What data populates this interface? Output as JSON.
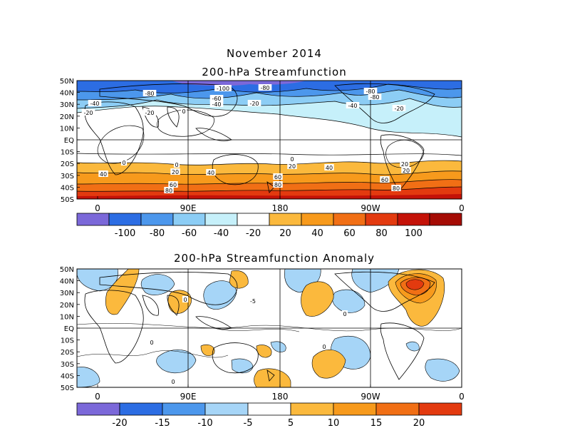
{
  "header": {
    "month": "November 2014"
  },
  "panels": [
    {
      "title": "200-hPa Streamfunction",
      "lat_labels": [
        "50N",
        "40N",
        "30N",
        "20N",
        "10N",
        "EQ",
        "10S",
        "20S",
        "30S",
        "40S",
        "50S"
      ],
      "lon_labels": [
        "0",
        "90E",
        "180",
        "90W",
        "0"
      ],
      "colorbar": {
        "labels": [
          "-100",
          "-80",
          "-60",
          "-40",
          "-20",
          "20",
          "40",
          "60",
          "80",
          "100"
        ],
        "colors": [
          "#7b68d9",
          "#2c6de3",
          "#4c97ec",
          "#8ccdf5",
          "#c6f0fa",
          "#ffffff",
          "#fbb93d",
          "#f79a1c",
          "#f16f15",
          "#e33a0f",
          "#c41208",
          "#a50c05"
        ]
      },
      "contour_labels": [
        "-100",
        "-80",
        "-80",
        "-80",
        "-80",
        "-60",
        "-40",
        "-40",
        "-40",
        "-20",
        "-20",
        "-20",
        "-20",
        "0",
        "0",
        "0",
        "0",
        "20",
        "20",
        "20",
        "20",
        "40",
        "40",
        "40",
        "60",
        "60",
        "60",
        "80",
        "80",
        "80"
      ]
    },
    {
      "title": "200-hPa Streamfunction Anomaly",
      "lat_labels": [
        "50N",
        "40N",
        "30N",
        "20N",
        "10N",
        "EQ",
        "10S",
        "20S",
        "30S",
        "40S",
        "50S"
      ],
      "lon_labels": [
        "0",
        "90E",
        "180",
        "90W",
        "0"
      ],
      "colorbar": {
        "labels": [
          "-20",
          "-15",
          "-10",
          "-5",
          "5",
          "10",
          "15",
          "20"
        ],
        "colors": [
          "#7b68d9",
          "#2c6de3",
          "#4c97ec",
          "#a6d5f7",
          "#ffffff",
          "#fbb93d",
          "#f79a1c",
          "#f16f15",
          "#e33a0f"
        ]
      },
      "contour_labels": [
        "0",
        "-5",
        "0",
        "0",
        "0",
        "0"
      ]
    }
  ]
}
